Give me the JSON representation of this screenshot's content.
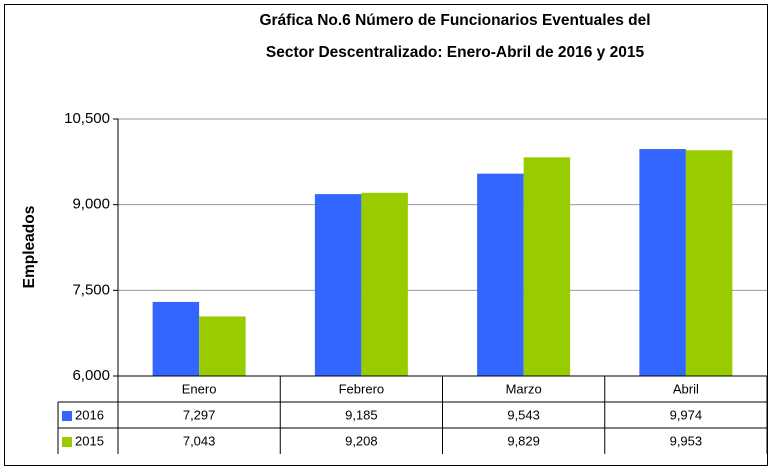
{
  "chart_data": {
    "type": "bar",
    "title": [
      "Gráfica No.6 Número de Funcionarios Eventuales del",
      "Sector Descentralizado: Enero-Abril de 2016 y 2015"
    ],
    "y_label": "Empleados",
    "categories": [
      "Enero",
      "Febrero",
      "Marzo",
      "Abril"
    ],
    "series": [
      {
        "name": "2016",
        "color": "#3366ff",
        "values": [
          7297,
          9185,
          9543,
          9974
        ],
        "value_labels": [
          "7,297",
          "9,185",
          "9,543",
          "9,974"
        ]
      },
      {
        "name": "2015",
        "color": "#99cc00",
        "values": [
          7043,
          9208,
          9829,
          9953
        ],
        "value_labels": [
          "7,043",
          "9,208",
          "9,829",
          "9,953"
        ]
      }
    ],
    "ylim": [
      6000,
      10500
    ],
    "yticks": [
      {
        "value": 6000,
        "label": "6,000"
      },
      {
        "value": 7500,
        "label": "7,500"
      },
      {
        "value": 9000,
        "label": "9,000"
      },
      {
        "value": 10500,
        "label": "10,500"
      }
    ],
    "grid": true
  }
}
